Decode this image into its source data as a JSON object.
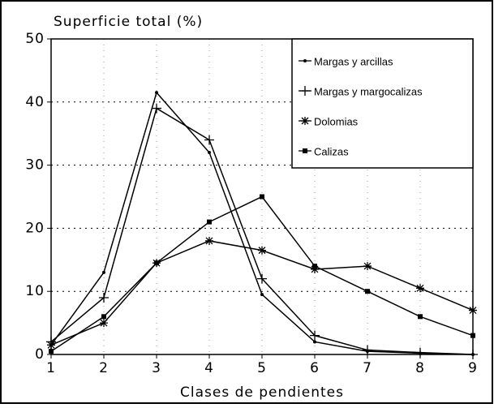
{
  "chart_data": {
    "type": "line",
    "title": "Superficie total (%)",
    "x_label": "Clases de pendientes",
    "x": [
      1,
      2,
      3,
      4,
      5,
      6,
      7,
      8,
      9
    ],
    "xlim": [
      1,
      9
    ],
    "xticks": [
      1,
      2,
      3,
      4,
      5,
      6,
      7,
      8,
      9
    ],
    "ylim": [
      0,
      50
    ],
    "yticks": [
      0,
      10,
      20,
      30,
      40,
      50
    ],
    "grid": true,
    "legend": "upper right",
    "series": [
      {
        "name": "Margas y arcillas",
        "color": "#000000",
        "marker": "dot",
        "values": [
          1.5,
          13,
          41.5,
          32,
          9.5,
          2,
          0.5,
          0.2,
          0
        ]
      },
      {
        "name": "Margas y margocalizas",
        "color": "#000000",
        "marker": "plus",
        "values": [
          2,
          9,
          39,
          34,
          12,
          3,
          0.7,
          0.3,
          0
        ]
      },
      {
        "name": "Dolomias",
        "color": "#000000",
        "marker": "star",
        "values": [
          1.5,
          5,
          14.5,
          18,
          16.5,
          13.5,
          14,
          10.5,
          7
        ]
      },
      {
        "name": "Calizas",
        "color": "#000000",
        "marker": "square",
        "values": [
          0.5,
          6,
          14.5,
          21,
          25,
          14,
          10,
          6,
          3
        ]
      }
    ]
  }
}
